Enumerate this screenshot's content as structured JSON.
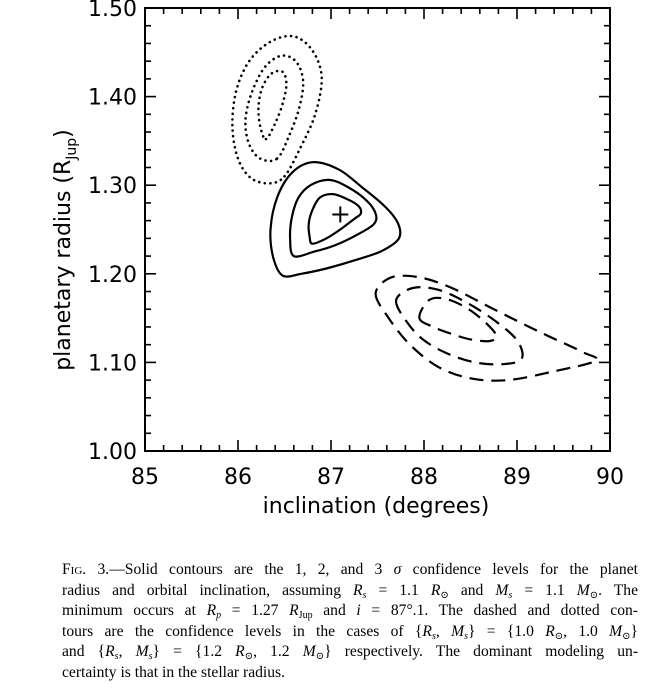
{
  "chart_data": {
    "type": "contour",
    "xlabel": "inclination (degrees)",
    "ylabel": "planetary radius (R",
    "ylabel_sub": "Jup",
    "ylabel_close": ")",
    "xlim": [
      85,
      90
    ],
    "ylim": [
      1.0,
      1.5
    ],
    "x_ticks": [
      85,
      86,
      87,
      88,
      89,
      90
    ],
    "x_tick_labels": [
      "85",
      "86",
      "87",
      "88",
      "89",
      "90"
    ],
    "y_ticks": [
      1.0,
      1.1,
      1.2,
      1.3,
      1.4,
      1.5
    ],
    "y_tick_labels": [
      "1.00",
      "1.10",
      "1.20",
      "1.30",
      "1.40",
      "1.50"
    ],
    "minimum_marker": {
      "x": 87.1,
      "y": 1.267,
      "symbol": "+"
    },
    "series": [
      {
        "style": "solid",
        "contours": [
          [
            [
              86.8,
              1.234
            ],
            [
              86.95,
              1.24
            ],
            [
              87.1,
              1.25
            ],
            [
              87.25,
              1.262
            ],
            [
              87.32,
              1.268
            ],
            [
              87.3,
              1.276
            ],
            [
              87.18,
              1.284
            ],
            [
              87.02,
              1.29
            ],
            [
              86.88,
              1.286
            ],
            [
              86.8,
              1.272
            ],
            [
              86.76,
              1.256
            ],
            [
              86.77,
              1.242
            ],
            [
              86.8,
              1.234
            ]
          ],
          [
            [
              86.6,
              1.22
            ],
            [
              86.82,
              1.225
            ],
            [
              87.04,
              1.232
            ],
            [
              87.28,
              1.244
            ],
            [
              87.46,
              1.256
            ],
            [
              87.48,
              1.268
            ],
            [
              87.38,
              1.283
            ],
            [
              87.18,
              1.298
            ],
            [
              86.98,
              1.306
            ],
            [
              86.78,
              1.3
            ],
            [
              86.65,
              1.286
            ],
            [
              86.58,
              1.264
            ],
            [
              86.56,
              1.24
            ],
            [
              86.6,
              1.22
            ]
          ],
          [
            [
              86.48,
              1.198
            ],
            [
              86.68,
              1.2
            ],
            [
              86.95,
              1.206
            ],
            [
              87.28,
              1.216
            ],
            [
              87.55,
              1.226
            ],
            [
              87.73,
              1.24
            ],
            [
              87.72,
              1.257
            ],
            [
              87.58,
              1.276
            ],
            [
              87.33,
              1.298
            ],
            [
              87.08,
              1.318
            ],
            [
              86.8,
              1.326
            ],
            [
              86.58,
              1.314
            ],
            [
              86.42,
              1.286
            ],
            [
              86.35,
              1.25
            ],
            [
              86.38,
              1.218
            ],
            [
              86.48,
              1.198
            ]
          ]
        ]
      },
      {
        "style": "dashed",
        "contours": [
          [
            [
              87.95,
              1.15
            ],
            [
              88.1,
              1.14
            ],
            [
              88.3,
              1.132
            ],
            [
              88.5,
              1.126
            ],
            [
              88.7,
              1.124
            ],
            [
              88.78,
              1.13
            ],
            [
              88.65,
              1.146
            ],
            [
              88.45,
              1.162
            ],
            [
              88.22,
              1.172
            ],
            [
              88.05,
              1.17
            ],
            [
              87.95,
              1.15
            ]
          ],
          [
            [
              87.7,
              1.17
            ],
            [
              87.82,
              1.145
            ],
            [
              88.0,
              1.125
            ],
            [
              88.25,
              1.11
            ],
            [
              88.55,
              1.1
            ],
            [
              88.85,
              1.098
            ],
            [
              89.05,
              1.104
            ],
            [
              89.0,
              1.125
            ],
            [
              88.75,
              1.148
            ],
            [
              88.45,
              1.168
            ],
            [
              88.15,
              1.182
            ],
            [
              87.88,
              1.184
            ],
            [
              87.7,
              1.17
            ]
          ],
          [
            [
              87.48,
              1.178
            ],
            [
              87.62,
              1.15
            ],
            [
              87.85,
              1.12
            ],
            [
              88.15,
              1.095
            ],
            [
              88.5,
              1.082
            ],
            [
              88.9,
              1.08
            ],
            [
              89.4,
              1.09
            ],
            [
              89.85,
              1.102
            ],
            [
              89.7,
              1.112
            ],
            [
              89.25,
              1.134
            ],
            [
              88.75,
              1.16
            ],
            [
              88.3,
              1.184
            ],
            [
              87.95,
              1.196
            ],
            [
              87.65,
              1.196
            ],
            [
              87.48,
              1.178
            ]
          ]
        ]
      },
      {
        "style": "dotted",
        "contours": [
          [
            [
              86.3,
              1.352
            ],
            [
              86.4,
              1.37
            ],
            [
              86.48,
              1.392
            ],
            [
              86.52,
              1.414
            ],
            [
              86.48,
              1.428
            ],
            [
              86.36,
              1.426
            ],
            [
              86.26,
              1.41
            ],
            [
              86.22,
              1.388
            ],
            [
              86.24,
              1.366
            ],
            [
              86.3,
              1.352
            ]
          ],
          [
            [
              86.42,
              1.33
            ],
            [
              86.55,
              1.356
            ],
            [
              86.66,
              1.388
            ],
            [
              86.7,
              1.418
            ],
            [
              86.62,
              1.44
            ],
            [
              86.46,
              1.446
            ],
            [
              86.28,
              1.432
            ],
            [
              86.14,
              1.402
            ],
            [
              86.08,
              1.372
            ],
            [
              86.12,
              1.346
            ],
            [
              86.24,
              1.33
            ],
            [
              86.42,
              1.33
            ]
          ],
          [
            [
              86.5,
              1.31
            ],
            [
              86.66,
              1.34
            ],
            [
              86.83,
              1.38
            ],
            [
              86.9,
              1.422
            ],
            [
              86.8,
              1.452
            ],
            [
              86.6,
              1.468
            ],
            [
              86.35,
              1.462
            ],
            [
              86.12,
              1.44
            ],
            [
              85.98,
              1.406
            ],
            [
              85.94,
              1.366
            ],
            [
              86.0,
              1.33
            ],
            [
              86.14,
              1.308
            ],
            [
              86.34,
              1.302
            ],
            [
              86.5,
              1.31
            ]
          ]
        ]
      }
    ]
  },
  "caption": {
    "lines": [
      [
        {
          "t": "Fig. 3.",
          "c": "fig-label"
        },
        {
          "t": "—Solid contours are the 1, 2, and 3 "
        },
        {
          "t": "σ",
          "c": "i"
        },
        {
          "t": " confidence levels for the planet"
        }
      ],
      [
        {
          "t": "radius and orbital inclination, assuming "
        },
        {
          "t": "R",
          "c": "i"
        },
        {
          "t": "s",
          "c": "sub i"
        },
        {
          "t": " = 1.1 "
        },
        {
          "t": "R",
          "c": "i"
        },
        {
          "t": "⊙",
          "c": "sub"
        },
        {
          "t": " and "
        },
        {
          "t": "M",
          "c": "i"
        },
        {
          "t": "s",
          "c": "sub i"
        },
        {
          "t": " = 1.1 "
        },
        {
          "t": "M",
          "c": "i"
        },
        {
          "t": "⊙",
          "c": "sub"
        },
        {
          "t": ". The"
        }
      ],
      [
        {
          "t": "minimum occurs at "
        },
        {
          "t": "R",
          "c": "i"
        },
        {
          "t": "p",
          "c": "sub i"
        },
        {
          "t": " = 1.27 "
        },
        {
          "t": "R",
          "c": "i"
        },
        {
          "t": "Jup",
          "c": "sub"
        },
        {
          "t": " and "
        },
        {
          "t": "i",
          "c": "i"
        },
        {
          "t": " = 87°.1. The dashed and dotted con-"
        }
      ],
      [
        {
          "t": "tours are the confidence levels in the cases of {"
        },
        {
          "t": "R",
          "c": "i"
        },
        {
          "t": "s",
          "c": "sub i"
        },
        {
          "t": ", "
        },
        {
          "t": "M",
          "c": "i"
        },
        {
          "t": "s",
          "c": "sub i"
        },
        {
          "t": "} = {1.0 "
        },
        {
          "t": "R",
          "c": "i"
        },
        {
          "t": "⊙",
          "c": "sub"
        },
        {
          "t": ", 1.0 "
        },
        {
          "t": "M",
          "c": "i"
        },
        {
          "t": "⊙",
          "c": "sub"
        },
        {
          "t": "}"
        }
      ],
      [
        {
          "t": "and {"
        },
        {
          "t": "R",
          "c": "i"
        },
        {
          "t": "s",
          "c": "sub i"
        },
        {
          "t": ", "
        },
        {
          "t": "M",
          "c": "i"
        },
        {
          "t": "s",
          "c": "sub i"
        },
        {
          "t": "} = {1.2 "
        },
        {
          "t": "R",
          "c": "i"
        },
        {
          "t": "⊙",
          "c": "sub"
        },
        {
          "t": ", 1.2 "
        },
        {
          "t": "M",
          "c": "i"
        },
        {
          "t": "⊙",
          "c": "sub"
        },
        {
          "t": "} respectively. The dominant modeling un-"
        }
      ],
      [
        {
          "t": "certainty is that in the stellar radius."
        }
      ]
    ]
  }
}
